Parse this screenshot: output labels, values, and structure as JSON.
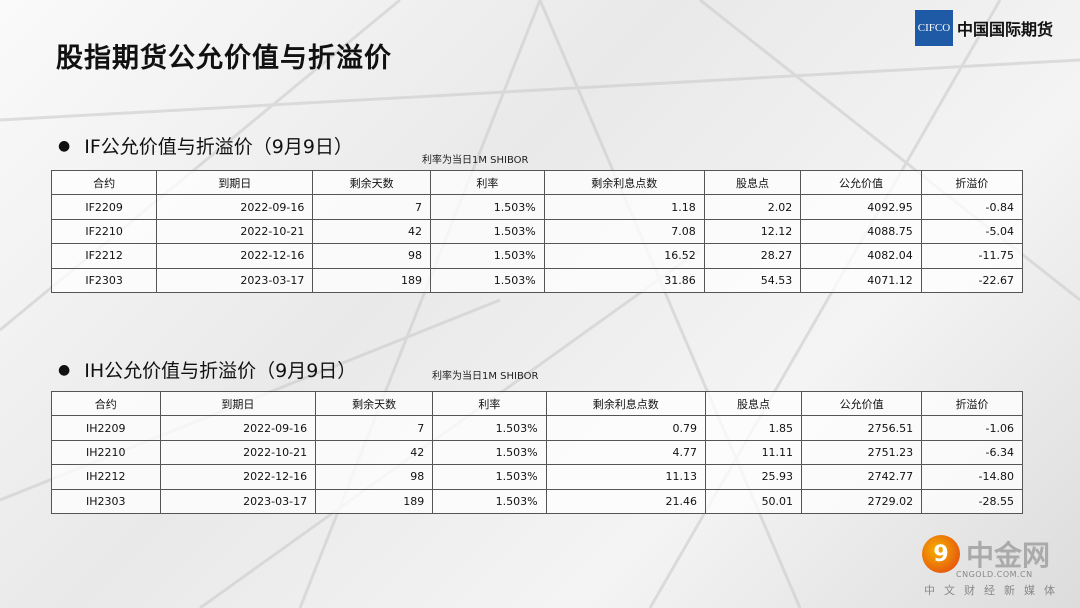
{
  "title": "股指期货公允价值与折溢价",
  "logo": {
    "mark": "CIFCO",
    "name": "中国国际期货"
  },
  "sections": [
    {
      "heading": "IF公允价值与折溢价（9月9日）",
      "note": "利率为当日1M SHIBOR",
      "columns": [
        "合约",
        "到期日",
        "剩余天数",
        "利率",
        "剩余利息点数",
        "股息点",
        "公允价值",
        "折溢价"
      ],
      "rows": [
        [
          "IF2209",
          "2022-09-16",
          "7",
          "1.503%",
          "1.18",
          "2.02",
          "4092.95",
          "-0.84"
        ],
        [
          "IF2210",
          "2022-10-21",
          "42",
          "1.503%",
          "7.08",
          "12.12",
          "4088.75",
          "-5.04"
        ],
        [
          "IF2212",
          "2022-12-16",
          "98",
          "1.503%",
          "16.52",
          "28.27",
          "4082.04",
          "-11.75"
        ],
        [
          "IF2303",
          "2023-03-17",
          "189",
          "1.503%",
          "31.86",
          "54.53",
          "4071.12",
          "-22.67"
        ]
      ]
    },
    {
      "heading": "IH公允价值与折溢价（9月9日）",
      "note": "利率为当日1M SHIBOR",
      "columns": [
        "合约",
        "到期日",
        "剩余天数",
        "利率",
        "剩余利息点数",
        "股息点",
        "公允价值",
        "折溢价"
      ],
      "rows": [
        [
          "IH2209",
          "2022-09-16",
          "7",
          "1.503%",
          "0.79",
          "1.85",
          "2756.51",
          "-1.06"
        ],
        [
          "IH2210",
          "2022-10-21",
          "42",
          "1.503%",
          "4.77",
          "11.11",
          "2751.23",
          "-6.34"
        ],
        [
          "IH2212",
          "2022-12-16",
          "98",
          "1.503%",
          "11.13",
          "25.93",
          "2742.77",
          "-14.80"
        ],
        [
          "IH2303",
          "2023-03-17",
          "189",
          "1.503%",
          "21.46",
          "50.01",
          "2729.02",
          "-28.55"
        ]
      ]
    }
  ],
  "watermark": {
    "brand": "中金网",
    "domain": "CNGOLD.COM.CN",
    "tagline": "中文财经新媒体"
  }
}
